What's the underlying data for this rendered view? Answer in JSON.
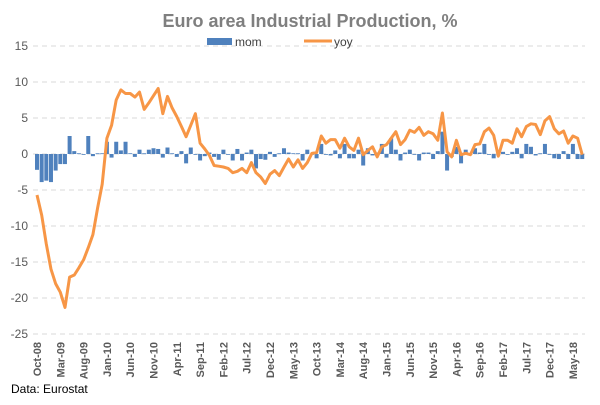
{
  "chart_data": {
    "type": "bar+line",
    "title": "Euro area Industrial Production, %",
    "source_note": "Data: Eurostat",
    "xlabel": "",
    "ylabel": "",
    "ylim": [
      -25,
      15
    ],
    "y_ticks": [
      15,
      10,
      5,
      0,
      -5,
      -10,
      -15,
      -20,
      -25
    ],
    "x_tick_labels": [
      "Oct-08",
      "Mar-09",
      "Aug-09",
      "Jan-10",
      "Jun-10",
      "Nov-10",
      "Apr-11",
      "Sep-11",
      "Feb-12",
      "Jul-12",
      "Dec-12",
      "May-13",
      "Oct-13",
      "Mar-14",
      "Aug-14",
      "Jan-15",
      "Jun-15",
      "Nov-15",
      "Apr-16",
      "Sep-16",
      "Feb-17",
      "Jul-17",
      "Dec-17",
      "May-18"
    ],
    "x_range": [
      "Oct-08",
      "Jul-18"
    ],
    "frequency": "monthly",
    "grid": "horizontal dashed",
    "legend_position": "top",
    "colors": {
      "mom": "#4f81bd",
      "yoy": "#f79646",
      "title": "#7f7f7f",
      "axis_text": "#595959",
      "grid": "#d9d9d9"
    },
    "series": [
      {
        "name": "mom",
        "kind": "bar",
        "values": [
          -2.2,
          -3.9,
          -3.7,
          -3.9,
          -2.3,
          -1.4,
          -1.4,
          2.5,
          0.4,
          0.1,
          0,
          2.5,
          -0.3,
          0.1,
          0.1,
          1.7,
          -0.5,
          1.7,
          0.5,
          1.7,
          0.1,
          -0.4,
          0.6,
          0.1,
          0.6,
          0.8,
          0.7,
          -0.5,
          0.9,
          0.1,
          -0.4,
          0.4,
          -1.3,
          0.9,
          0,
          -0.9,
          -0.3,
          0.2,
          -0.4,
          -0.8,
          0.6,
          0,
          -0.9,
          0.7,
          -0.9,
          0.2,
          0.6,
          -2,
          -0.7,
          -0.8,
          0.3,
          -0.4,
          0.1,
          0.8,
          0.2,
          0.1,
          0.1,
          -0.9,
          0.6,
          0,
          -0.6,
          1.4,
          0,
          -0.2,
          0.5,
          -0.6,
          1.4,
          -0.6,
          -0.6,
          0.6,
          -1.6,
          0.8,
          -0.2,
          0.2,
          1.4,
          -0.5,
          2.2,
          0.6,
          -0.9,
          0.2,
          0.6,
          0,
          -0.9,
          0.2,
          0.2,
          -0.7,
          0.4,
          3.1,
          -2.3,
          -0.4,
          1,
          -1.3,
          0.6,
          0,
          0.8,
          0.2,
          1.4,
          -0.1,
          -0.6,
          -0.2,
          0.3,
          0,
          0.3,
          0.8,
          -0.6,
          1.4,
          1,
          -0.2,
          0.1,
          1.4,
          -0.1,
          -0.6,
          -0.7,
          0.4,
          -0.7,
          1.4,
          -0.7,
          -0.7
        ]
      },
      {
        "name": "yoy",
        "kind": "line",
        "values": [
          -5.7,
          -8.5,
          -12.5,
          -16,
          -18,
          -19.2,
          -21.3,
          -17.1,
          -16.8,
          -15.8,
          -14.7,
          -13,
          -11.2,
          -7.5,
          -4.2,
          2.2,
          4,
          7.5,
          8.9,
          8.4,
          8.4,
          7.9,
          8.6,
          6.2,
          7.1,
          8.1,
          9.1,
          5.6,
          8,
          6.4,
          5.2,
          3.8,
          2.4,
          4,
          5.6,
          1.5,
          0.7,
          -0.2,
          -1.6,
          -1.7,
          -1.8,
          -2,
          -2.6,
          -2.4,
          -2,
          -2.6,
          -1.2,
          -2.6,
          -3.2,
          -4.1,
          -2.8,
          -2.3,
          -3,
          -1.8,
          -0.7,
          -1.8,
          -0.8,
          -2,
          -1.2,
          0.1,
          0.2,
          2.5,
          1.5,
          2,
          2,
          0.8,
          2.2,
          1,
          0.5,
          2.2,
          -0.1,
          0.5,
          1,
          -0.4,
          1,
          1.3,
          2.2,
          3.1,
          1.3,
          2,
          3.3,
          3,
          3.7,
          2.6,
          3.1,
          2.8,
          1.9,
          5.7,
          0.3,
          -0.4,
          1.9,
          -0.1,
          0.1,
          -0.1,
          1.3,
          1.4,
          3.1,
          3.6,
          2.6,
          -0.3,
          1.9,
          1.9,
          1.5,
          3.5,
          2.4,
          3.8,
          4.2,
          4.1,
          2.7,
          4.6,
          5.2,
          3.5,
          2.8,
          3.2,
          1.5,
          2.5,
          2.2,
          -0.1
        ]
      }
    ]
  }
}
